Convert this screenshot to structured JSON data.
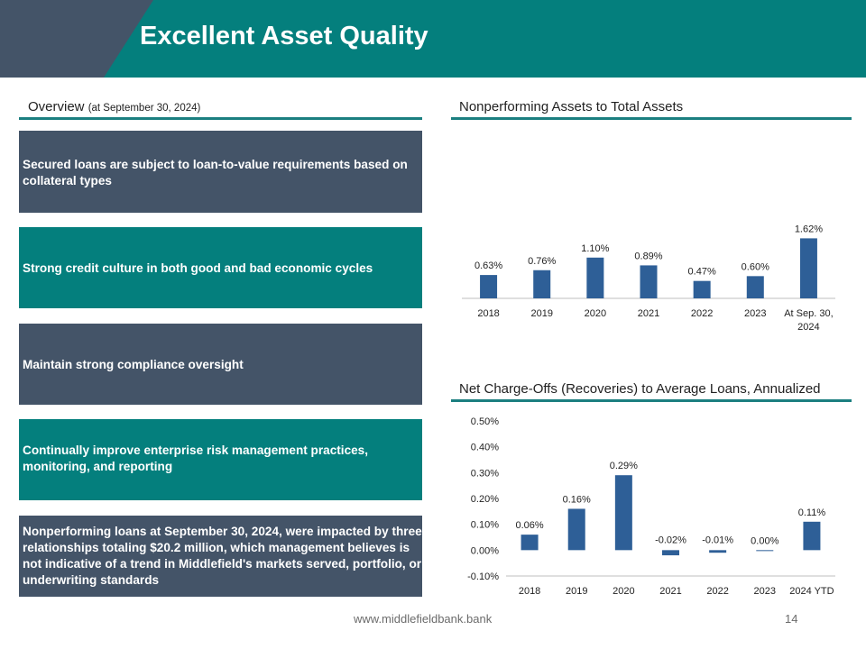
{
  "header": {
    "title": "Excellent Asset Quality"
  },
  "overview": {
    "title": "Overview",
    "subtitle": "(at September 30, 2024)",
    "boxes": [
      "Secured loans are subject to loan-to-value requirements based on collateral types",
      "Strong credit culture in both good and bad economic cycles",
      "Maintain strong compliance oversight",
      "Continually improve enterprise risk management practices, monitoring, and reporting",
      "Nonperforming loans at September 30, 2024, were impacted by three relationships totaling $20.2 million, which management believes is not indicative of a trend in Middlefield's markets served, portfolio, or underwriting standards"
    ]
  },
  "colors": {
    "teal": "#047f7d",
    "slate": "#445468",
    "bar": "#2e5f97"
  },
  "chart_data": [
    {
      "type": "bar",
      "title": "Nonperforming Assets to Total Assets",
      "categories": [
        "2018",
        "2019",
        "2020",
        "2021",
        "2022",
        "2023",
        "At Sep. 30, 2024"
      ],
      "category_lines": [
        [
          "2018"
        ],
        [
          "2019"
        ],
        [
          "2020"
        ],
        [
          "2021"
        ],
        [
          "2022"
        ],
        [
          "2023"
        ],
        [
          "At Sep. 30,",
          "2024"
        ]
      ],
      "values": [
        0.63,
        0.76,
        1.1,
        0.89,
        0.47,
        0.6,
        1.62
      ],
      "labels": [
        "0.63%",
        "0.76%",
        "1.10%",
        "0.89%",
        "0.47%",
        "0.60%",
        "1.62%"
      ],
      "ylim": [
        0,
        1.8
      ],
      "show_y_axis": false,
      "xlabel": "",
      "ylabel": ""
    },
    {
      "type": "bar",
      "title": "Net Charge-Offs (Recoveries) to Average Loans, Annualized",
      "categories": [
        "2018",
        "2019",
        "2020",
        "2021",
        "2022",
        "2023",
        "2024 YTD"
      ],
      "category_lines": [
        [
          "2018"
        ],
        [
          "2019"
        ],
        [
          "2020"
        ],
        [
          "2021"
        ],
        [
          "2022"
        ],
        [
          "2023"
        ],
        [
          "2024 YTD"
        ]
      ],
      "values": [
        0.06,
        0.16,
        0.29,
        -0.02,
        -0.01,
        0.0,
        0.11
      ],
      "labels": [
        "0.06%",
        "0.16%",
        "0.29%",
        "-0.02%",
        "-0.01%",
        "0.00%",
        "0.11%"
      ],
      "ylim": [
        -0.1,
        0.5
      ],
      "yticks": [
        -0.1,
        0.0,
        0.1,
        0.2,
        0.3,
        0.4,
        0.5
      ],
      "ytick_labels": [
        "-0.10%",
        "0.00%",
        "0.10%",
        "0.20%",
        "0.30%",
        "0.40%",
        "0.50%"
      ],
      "show_y_axis": true,
      "xlabel": "",
      "ylabel": ""
    }
  ],
  "footer": {
    "url": "www.middlefieldbank.bank",
    "page": "14"
  }
}
